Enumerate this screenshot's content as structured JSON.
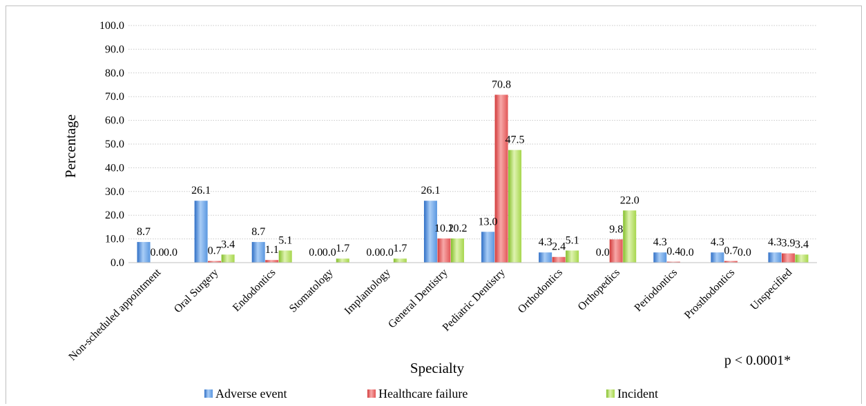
{
  "chart_data": {
    "type": "bar",
    "title": "",
    "xlabel": "Specialty",
    "ylabel": "Percentage",
    "ylim": [
      0,
      100
    ],
    "yticks": [
      "0.0",
      "10.0",
      "20.0",
      "30.0",
      "40.0",
      "50.0",
      "60.0",
      "70.0",
      "80.0",
      "90.0",
      "100.0"
    ],
    "grid": "horizontal dotted",
    "legend_position": "bottom",
    "annotation": "p < 0.0001*",
    "categories": [
      "Non-scheduled appointment",
      "Oral Surgery",
      "Endodontics",
      "Stomatology",
      "Implantology",
      "General Dentistry",
      "Pediatric Dentistry",
      "Orthodontics",
      "Orthopedics",
      "Periodontics",
      "Prosthodontics",
      "Unspecified"
    ],
    "series": [
      {
        "name": "Adverse event",
        "color": "#4f8fde",
        "values": [
          8.7,
          26.1,
          8.7,
          0.0,
          0.0,
          26.1,
          13.0,
          4.3,
          0.0,
          4.3,
          4.3,
          4.3
        ]
      },
      {
        "name": "Healthcare failure",
        "color": "#e45a5a",
        "values": [
          0.0,
          0.7,
          1.1,
          0.0,
          0.0,
          10.2,
          70.8,
          2.4,
          9.8,
          0.4,
          0.7,
          3.9
        ]
      },
      {
        "name": "Incident",
        "color": "#9dcf3c",
        "values": [
          0.0,
          3.4,
          5.1,
          1.7,
          1.7,
          10.2,
          47.5,
          5.1,
          22.0,
          0.0,
          0.0,
          3.4
        ]
      }
    ]
  }
}
